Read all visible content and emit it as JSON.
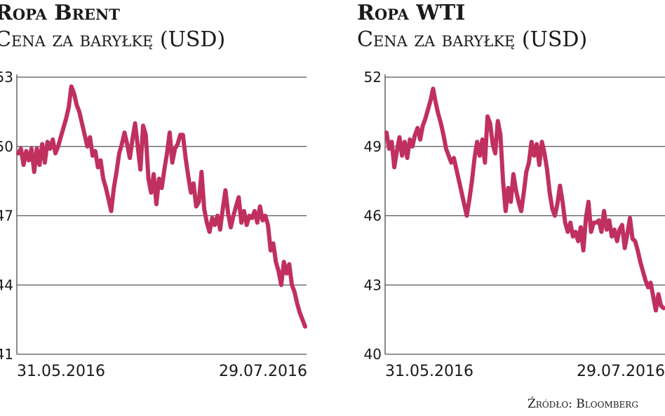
{
  "chart_data": [
    {
      "type": "line",
      "title": "Ropa Brent",
      "subtitle": "Cena za baryłkę (USD)",
      "x_labels": [
        "31.05.2016",
        "29.07.2016"
      ],
      "x_range": [
        "31.05.2016",
        "29.07.2016"
      ],
      "ylim": [
        41,
        53
      ],
      "yticks": [
        41,
        44,
        47,
        50,
        53
      ],
      "grid": true,
      "color": "#c0305e",
      "series": [
        {
          "values": [
            49.7,
            49.9,
            49.2,
            49.8,
            49.4,
            49.9,
            48.9,
            49.9,
            49.2,
            50.1,
            49.3,
            50.2,
            49.9,
            50.3,
            49.7,
            50.0,
            50.4,
            50.8,
            51.2,
            51.7,
            52.6,
            52.3,
            51.8,
            51.5,
            51.0,
            50.5,
            50.0,
            50.4,
            49.6,
            49.8,
            49.1,
            49.4,
            48.6,
            48.2,
            47.7,
            47.2,
            48.2,
            48.9,
            49.7,
            50.1,
            50.6,
            50.1,
            49.5,
            50.3,
            51.0,
            50.0,
            49.0,
            50.9,
            50.5,
            48.6,
            48.0,
            48.8,
            47.5,
            48.6,
            48.2,
            49.0,
            49.7,
            50.6,
            49.3,
            49.9,
            50.1,
            50.5,
            50.5,
            49.5,
            48.7,
            48.0,
            48.4,
            47.4,
            47.6,
            48.9,
            47.3,
            46.7,
            46.3,
            46.9,
            46.6,
            47.0,
            46.4,
            47.3,
            48.1,
            47.1,
            46.5,
            47.0,
            47.4,
            47.8,
            46.7,
            47.2,
            46.6,
            47.0,
            46.9,
            47.2,
            46.7,
            47.4,
            46.8,
            47.0,
            46.6,
            45.5,
            45.8,
            45.0,
            44.6,
            44.0,
            45.0,
            44.5,
            44.9,
            44.0,
            43.7,
            43.2,
            42.8,
            42.5,
            42.2
          ]
        }
      ]
    },
    {
      "type": "line",
      "title": "Ropa WTI",
      "subtitle": "Cena za baryłkę (USD)",
      "x_labels": [
        "31.05.2016",
        "29.07.2016"
      ],
      "x_range": [
        "31.05.2016",
        "29.07.2016"
      ],
      "ylim": [
        40,
        52
      ],
      "yticks": [
        40,
        43,
        46,
        49,
        52
      ],
      "grid": true,
      "color": "#c0305e",
      "series": [
        {
          "values": [
            49.6,
            48.9,
            49.2,
            48.1,
            48.8,
            49.4,
            48.6,
            49.2,
            48.5,
            49.3,
            49.0,
            49.5,
            49.8,
            49.3,
            49.9,
            50.2,
            50.6,
            51.0,
            51.5,
            50.9,
            50.4,
            50.0,
            49.5,
            48.9,
            48.6,
            48.3,
            48.5,
            48.0,
            47.5,
            47.0,
            46.5,
            46.0,
            46.7,
            47.5,
            48.5,
            49.2,
            48.6,
            49.3,
            48.3,
            50.3,
            50.0,
            49.1,
            48.7,
            50.1,
            49.5,
            47.5,
            46.2,
            47.2,
            46.6,
            47.8,
            47.1,
            46.6,
            46.2,
            47.0,
            47.9,
            48.3,
            49.2,
            48.6,
            49.1,
            48.2,
            49.2,
            48.7,
            48.0,
            47.0,
            46.3,
            46.0,
            46.5,
            47.3,
            46.6,
            45.7,
            45.3,
            45.7,
            45.1,
            45.3,
            44.9,
            45.5,
            44.5,
            45.9,
            46.6,
            45.3,
            45.7,
            45.7,
            45.8,
            45.3,
            46.2,
            45.4,
            45.8,
            45.1,
            45.4,
            44.9,
            45.4,
            45.6,
            44.6,
            45.2,
            45.9,
            45.0,
            44.9,
            44.5,
            44.0,
            43.6,
            43.2,
            42.9,
            43.1,
            42.5,
            41.9,
            42.6,
            42.1,
            42.0
          ]
        }
      ]
    }
  ],
  "source": "Źródło: Bloomberg"
}
